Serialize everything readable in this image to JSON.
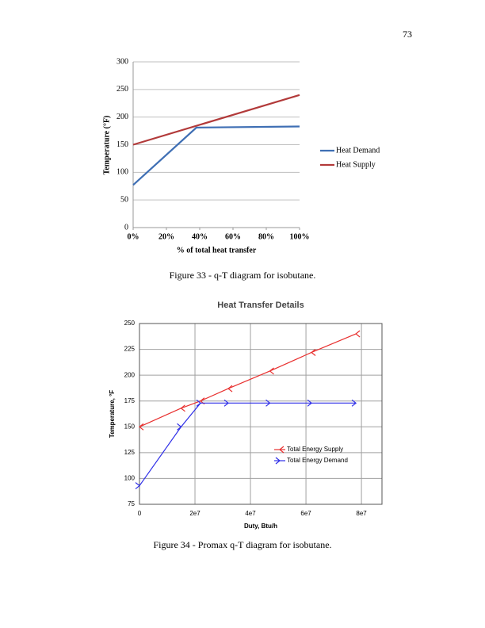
{
  "page_number": "73",
  "figures": [
    {
      "caption": "Figure 33 - q-T diagram for isobutane."
    },
    {
      "caption": "Figure 34 - Promax q-T diagram for isobutane."
    }
  ],
  "chart_data": [
    {
      "type": "line",
      "xlabel": "% of total heat transfer",
      "ylabel": "Temperature (°F)",
      "xlim": [
        0,
        100
      ],
      "xticks": [
        {
          "value": 0,
          "label": "0%"
        },
        {
          "value": 20,
          "label": "20%"
        },
        {
          "value": 40,
          "label": "40%"
        },
        {
          "value": 60,
          "label": "60%"
        },
        {
          "value": 80,
          "label": "80%"
        },
        {
          "value": 100,
          "label": "100%"
        }
      ],
      "ylim": [
        0,
        300
      ],
      "yticks": [
        0,
        50,
        100,
        150,
        200,
        250,
        300
      ],
      "grid": "y",
      "legend": "right",
      "series": [
        {
          "name": "Heat Demand",
          "color": "#3f6fb4",
          "x": [
            0,
            38,
            100
          ],
          "values": [
            77,
            181,
            183
          ]
        },
        {
          "name": "Heat Supply",
          "color": "#b23a3a",
          "x": [
            0,
            100
          ],
          "values": [
            150,
            240
          ]
        }
      ]
    },
    {
      "type": "line",
      "title": "Heat Transfer Details",
      "xlabel": "Duty, Btu/h",
      "ylabel": "Temperature, °F",
      "xlim": [
        0,
        87400000
      ],
      "xticks": [
        0,
        {
          "value": 20000000,
          "label": "2e7"
        },
        {
          "value": 40000000,
          "label": "4e7"
        },
        {
          "value": 60000000,
          "label": "6e7"
        },
        {
          "value": 80000000,
          "label": "8e7"
        }
      ],
      "ylim": [
        75,
        250
      ],
      "yticks": [
        75,
        100,
        125,
        150,
        175,
        200,
        225,
        250
      ],
      "grid": "both",
      "legend": "inside-right",
      "series": [
        {
          "name": "Total Energy Supply",
          "color": "#e8302f",
          "marker": "left",
          "x": [
            0,
            15000000,
            22000000,
            32000000,
            47000000,
            62000000,
            78000000
          ],
          "values": [
            150,
            168,
            175,
            187,
            204,
            222,
            240
          ]
        },
        {
          "name": "Total Energy Demand",
          "color": "#2f2fe8",
          "marker": "right",
          "x": [
            0,
            15000000,
            22000000,
            32000000,
            47000000,
            62000000,
            78000000
          ],
          "values": [
            93,
            150,
            173,
            173,
            173,
            173,
            173
          ]
        }
      ]
    }
  ]
}
